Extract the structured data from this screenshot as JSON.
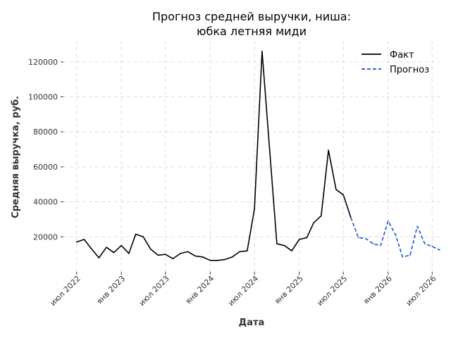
{
  "chart_data": {
    "type": "line",
    "title_line1": "Прогноз средней выручки, ниша:",
    "title_line2": "юбка летняя миди",
    "xlabel": "Дата",
    "ylabel": "Средняя выручка, руб.",
    "ylim": [
      0,
      132000
    ],
    "xlim": [
      "2022-05-08",
      "2026-08-01"
    ],
    "grid": true,
    "legend_position": "top-right",
    "y_ticks": [
      20000,
      40000,
      60000,
      80000,
      100000,
      120000
    ],
    "x_ticks": [
      {
        "date": "2022-07-01",
        "label": "июл 2022"
      },
      {
        "date": "2023-01-01",
        "label": "янв 2023"
      },
      {
        "date": "2023-07-01",
        "label": "июл 2023"
      },
      {
        "date": "2024-01-01",
        "label": "янв 2024"
      },
      {
        "date": "2024-07-01",
        "label": "июл 2024"
      },
      {
        "date": "2025-01-01",
        "label": "янв 2025"
      },
      {
        "date": "2025-07-01",
        "label": "июл 2025"
      },
      {
        "date": "2026-01-01",
        "label": "янв 2026"
      },
      {
        "date": "2026-07-01",
        "label": "июл 2026"
      }
    ],
    "series": [
      {
        "name": "Факт",
        "color": "#000000",
        "style": "solid",
        "x": [
          "2022-07-01",
          "2022-08-01",
          "2022-09-01",
          "2022-10-01",
          "2022-11-01",
          "2022-12-01",
          "2023-01-01",
          "2023-02-01",
          "2023-03-01",
          "2023-04-01",
          "2023-05-01",
          "2023-06-01",
          "2023-07-01",
          "2023-08-01",
          "2023-09-01",
          "2023-10-01",
          "2023-11-01",
          "2023-12-01",
          "2024-01-01",
          "2024-02-01",
          "2024-03-01",
          "2024-04-01",
          "2024-05-01",
          "2024-06-01",
          "2024-07-01",
          "2024-08-01",
          "2024-09-01",
          "2024-10-01",
          "2024-11-01",
          "2024-12-01",
          "2025-01-01",
          "2025-02-01",
          "2025-03-01",
          "2025-04-01",
          "2025-05-01",
          "2025-06-01",
          "2025-07-01",
          "2025-08-01"
        ],
        "y": [
          17000,
          18500,
          13000,
          8000,
          14000,
          11000,
          15000,
          10500,
          21500,
          20000,
          13000,
          9500,
          10000,
          7500,
          10500,
          11500,
          9000,
          8500,
          6500,
          6500,
          7000,
          8500,
          11500,
          12000,
          36000,
          126000,
          70000,
          16000,
          15000,
          12000,
          18500,
          19500,
          28000,
          32000,
          69500,
          47000,
          44000,
          31000
        ]
      },
      {
        "name": "Прогноз",
        "color": "#1a55c7",
        "style": "dashed",
        "x": [
          "2025-08-01",
          "2025-09-01",
          "2025-10-01",
          "2025-11-01",
          "2025-12-01",
          "2026-01-01",
          "2026-02-01",
          "2026-03-01",
          "2026-04-01",
          "2026-05-01",
          "2026-06-01",
          "2026-07-01",
          "2026-08-01"
        ],
        "y": [
          31000,
          19500,
          19000,
          16000,
          15000,
          29000,
          21000,
          8500,
          9500,
          26000,
          16000,
          14500,
          12500
        ]
      }
    ]
  }
}
